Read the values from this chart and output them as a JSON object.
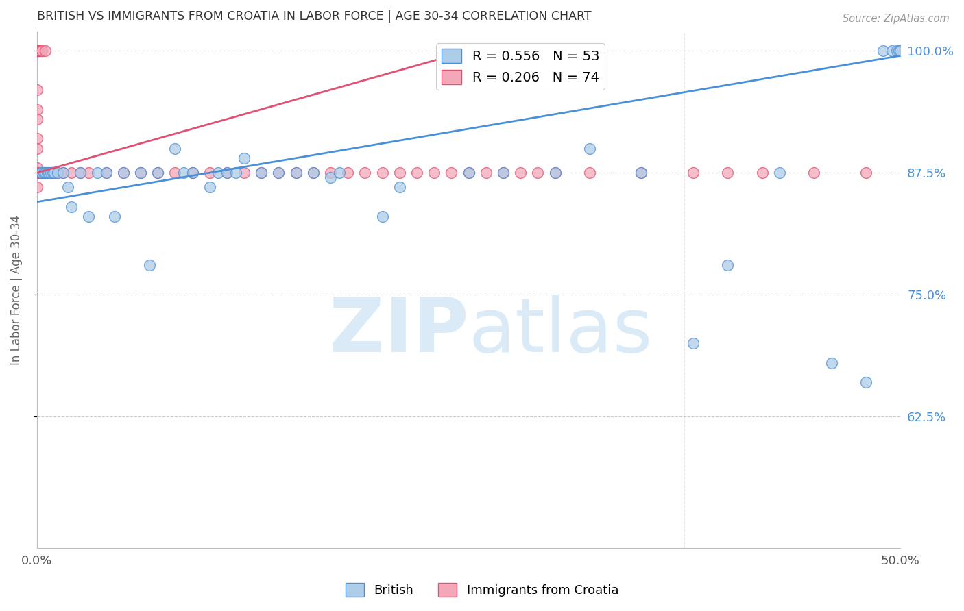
{
  "title": "BRITISH VS IMMIGRANTS FROM CROATIA IN LABOR FORCE | AGE 30-34 CORRELATION CHART",
  "source": "Source: ZipAtlas.com",
  "ylabel": "In Labor Force | Age 30-34",
  "xmin": 0.0,
  "xmax": 0.5,
  "ymin": 0.49,
  "ymax": 1.02,
  "yticks": [
    0.625,
    0.75,
    0.875,
    1.0
  ],
  "ytick_labels": [
    "62.5%",
    "75.0%",
    "87.5%",
    "100.0%"
  ],
  "xtick_positions": [
    0.0,
    0.0625,
    0.125,
    0.1875,
    0.25,
    0.3125,
    0.375,
    0.4375,
    0.5
  ],
  "xtick_labels": [
    "0.0%",
    "",
    "",
    "",
    "",
    "",
    "",
    "",
    "50.0%"
  ],
  "british_R": 0.556,
  "british_N": 53,
  "croatian_R": 0.206,
  "croatian_N": 74,
  "blue_fill": "#aecde8",
  "blue_edge": "#4a90d9",
  "pink_fill": "#f4a7b9",
  "pink_edge": "#e05070",
  "blue_line": "#4a90d9",
  "pink_line": "#e05070",
  "watermark_color": "#daeaf7",
  "tick_color_right": "#4a90d9",
  "grid_color": "#cccccc",
  "title_color": "#333333",
  "source_color": "#999999",
  "ylabel_color": "#666666",
  "british_x": [
    0.002,
    0.003,
    0.004,
    0.005,
    0.006,
    0.007,
    0.008,
    0.009,
    0.01,
    0.012,
    0.015,
    0.018,
    0.02,
    0.025,
    0.03,
    0.035,
    0.04,
    0.045,
    0.05,
    0.06,
    0.065,
    0.07,
    0.08,
    0.085,
    0.09,
    0.1,
    0.105,
    0.11,
    0.115,
    0.12,
    0.13,
    0.14,
    0.15,
    0.16,
    0.17,
    0.175,
    0.2,
    0.21,
    0.25,
    0.27,
    0.3,
    0.32,
    0.35,
    0.38,
    0.4,
    0.43,
    0.46,
    0.48,
    0.49,
    0.495,
    0.498,
    0.499,
    0.5
  ],
  "british_y": [
    0.875,
    0.875,
    0.875,
    0.875,
    0.875,
    0.875,
    0.875,
    0.875,
    0.875,
    0.875,
    0.875,
    0.86,
    0.84,
    0.875,
    0.83,
    0.875,
    0.875,
    0.83,
    0.875,
    0.875,
    0.78,
    0.875,
    0.9,
    0.875,
    0.875,
    0.86,
    0.875,
    0.875,
    0.875,
    0.89,
    0.875,
    0.875,
    0.875,
    0.875,
    0.87,
    0.875,
    0.83,
    0.86,
    0.875,
    0.875,
    0.875,
    0.9,
    0.875,
    0.7,
    0.78,
    0.875,
    0.68,
    0.66,
    1.0,
    1.0,
    1.0,
    1.0,
    1.0
  ],
  "croatian_x": [
    0.0,
    0.0,
    0.0,
    0.0,
    0.0,
    0.0,
    0.0,
    0.0,
    0.0,
    0.0,
    0.0,
    0.0,
    0.0,
    0.0,
    0.0,
    0.0,
    0.0,
    0.0,
    0.001,
    0.001,
    0.001,
    0.001,
    0.002,
    0.002,
    0.002,
    0.003,
    0.003,
    0.004,
    0.005,
    0.005,
    0.006,
    0.007,
    0.008,
    0.009,
    0.01,
    0.012,
    0.015,
    0.02,
    0.025,
    0.03,
    0.04,
    0.05,
    0.06,
    0.07,
    0.08,
    0.09,
    0.1,
    0.11,
    0.12,
    0.13,
    0.14,
    0.15,
    0.16,
    0.17,
    0.18,
    0.19,
    0.2,
    0.21,
    0.22,
    0.23,
    0.24,
    0.25,
    0.26,
    0.27,
    0.28,
    0.29,
    0.3,
    0.32,
    0.35,
    0.38,
    0.4,
    0.42,
    0.45,
    0.48
  ],
  "croatian_y": [
    1.0,
    1.0,
    1.0,
    1.0,
    1.0,
    1.0,
    1.0,
    1.0,
    1.0,
    1.0,
    0.96,
    0.94,
    0.93,
    0.91,
    0.9,
    0.88,
    0.86,
    0.875,
    1.0,
    1.0,
    1.0,
    0.875,
    1.0,
    0.875,
    0.875,
    1.0,
    0.875,
    0.875,
    1.0,
    0.875,
    0.875,
    0.875,
    0.875,
    0.875,
    0.875,
    0.875,
    0.875,
    0.875,
    0.875,
    0.875,
    0.875,
    0.875,
    0.875,
    0.875,
    0.875,
    0.875,
    0.875,
    0.875,
    0.875,
    0.875,
    0.875,
    0.875,
    0.875,
    0.875,
    0.875,
    0.875,
    0.875,
    0.875,
    0.875,
    0.875,
    0.875,
    0.875,
    0.875,
    0.875,
    0.875,
    0.875,
    0.875,
    0.875,
    0.875,
    0.875,
    0.875,
    0.875,
    0.875,
    0.875
  ],
  "brit_trendline_x": [
    0.0,
    0.5
  ],
  "brit_trendline_y": [
    0.845,
    0.995
  ],
  "croat_trendline_x": [
    0.0,
    0.25
  ],
  "croat_trendline_y": [
    0.875,
    1.0
  ]
}
